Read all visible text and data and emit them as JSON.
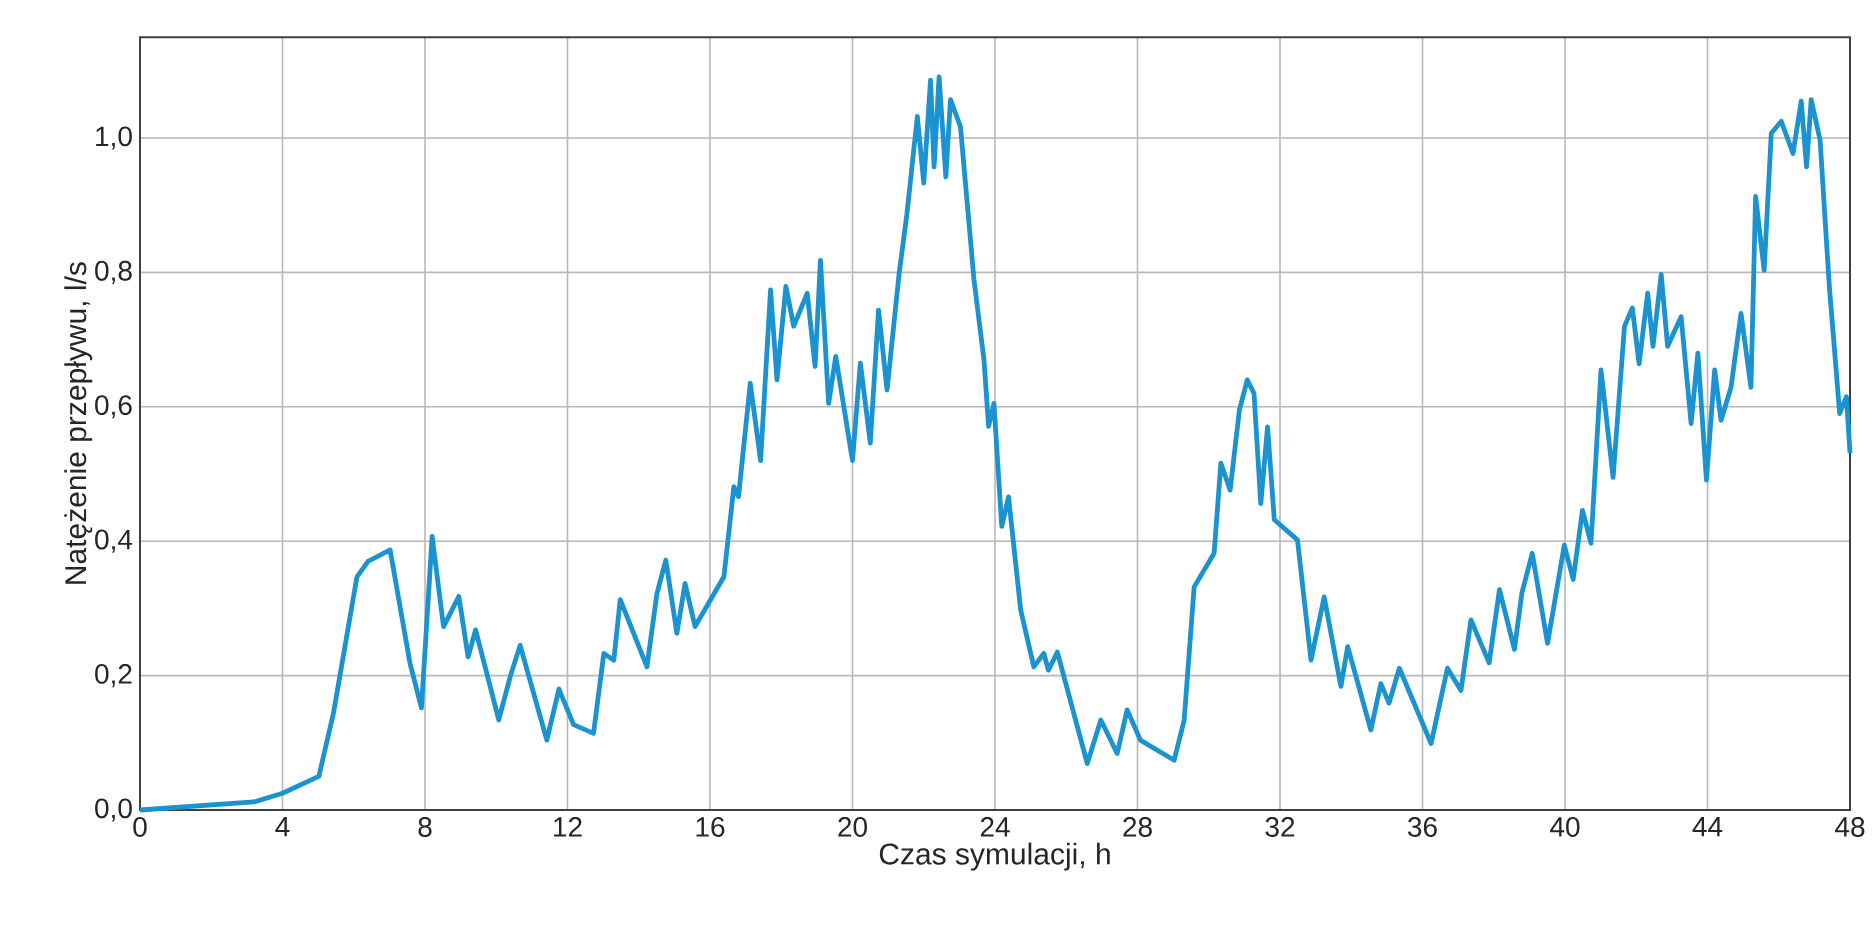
{
  "chart_data": {
    "type": "line",
    "xlabel": "Czas symulacji, h",
    "ylabel": "Natężenie przepływu, l/s",
    "xlim": [
      0,
      48
    ],
    "ylim": [
      0,
      1.15
    ],
    "xticks": [
      0,
      4,
      8,
      12,
      16,
      20,
      24,
      28,
      32,
      36,
      40,
      44,
      48
    ],
    "yticks": [
      {
        "value": 0,
        "label": "0,0"
      },
      {
        "value": 0.2,
        "label": "0,2"
      },
      {
        "value": 0.4,
        "label": "0,4"
      },
      {
        "value": 0.6,
        "label": "0,6"
      },
      {
        "value": 0.8,
        "label": "0,8"
      },
      {
        "value": 1.0,
        "label": "1,0"
      }
    ],
    "grid": true,
    "line_style": "solid",
    "series": [
      {
        "color": "#1a93d0",
        "x": [
          0,
          3.2,
          4,
          5.02,
          5.43,
          6.09,
          6.4,
          7.02,
          7.58,
          7.9,
          8.2,
          8.52,
          8.95,
          9.21,
          9.42,
          10.07,
          10.4,
          10.67,
          11.42,
          11.76,
          12.17,
          12.73,
          13.02,
          13.3,
          13.48,
          14.23,
          14.51,
          14.76,
          15.07,
          15.3,
          15.58,
          16.39,
          16.67,
          16.8,
          17.13,
          17.42,
          17.7,
          17.88,
          18.13,
          18.35,
          18.73,
          18.95,
          19.1,
          19.33,
          19.53,
          20.0,
          20.22,
          20.5,
          20.73,
          20.97,
          21.31,
          21.53,
          21.82,
          22.0,
          22.19,
          22.29,
          22.43,
          22.62,
          22.75,
          23.03,
          23.41,
          23.69,
          23.82,
          23.97,
          24.19,
          24.38,
          24.72,
          25.09,
          25.37,
          25.5,
          25.75,
          26.59,
          26.97,
          27.43,
          27.71,
          28.08,
          29.03,
          29.31,
          29.59,
          30.15,
          30.34,
          30.6,
          30.86,
          31.08,
          31.27,
          31.46,
          31.65,
          31.84,
          32.49,
          32.87,
          33.24,
          33.71,
          33.9,
          34.55,
          34.83,
          35.06,
          35.35,
          36.24,
          36.7,
          37.08,
          37.36,
          37.87,
          38.16,
          38.58,
          38.79,
          39.08,
          39.51,
          39.98,
          40.23,
          40.49,
          40.73,
          41.01,
          41.35,
          41.67,
          41.89,
          42.08,
          42.32,
          42.47,
          42.7,
          42.88,
          43.26,
          43.54,
          43.73,
          43.97,
          44.2,
          44.38,
          44.66,
          44.94,
          45.22,
          45.35,
          45.59,
          45.79,
          46.07,
          46.4,
          46.63,
          46.78,
          46.91,
          47.16,
          47.42,
          47.71,
          47.9,
          48
        ],
        "values": [
          0,
          0.012,
          0.025,
          0.05,
          0.144,
          0.347,
          0.37,
          0.387,
          0.218,
          0.152,
          0.407,
          0.273,
          0.318,
          0.228,
          0.268,
          0.134,
          0.2,
          0.245,
          0.104,
          0.18,
          0.127,
          0.114,
          0.233,
          0.223,
          0.313,
          0.213,
          0.322,
          0.372,
          0.263,
          0.337,
          0.273,
          0.347,
          0.481,
          0.466,
          0.635,
          0.52,
          0.774,
          0.64,
          0.779,
          0.72,
          0.769,
          0.66,
          0.818,
          0.605,
          0.675,
          0.52,
          0.665,
          0.546,
          0.744,
          0.625,
          0.799,
          0.888,
          1.032,
          0.933,
          1.086,
          0.957,
          1.091,
          0.942,
          1.057,
          1.017,
          0.789,
          0.67,
          0.571,
          0.605,
          0.422,
          0.466,
          0.298,
          0.213,
          0.233,
          0.208,
          0.235,
          0.069,
          0.134,
          0.084,
          0.149,
          0.104,
          0.074,
          0.134,
          0.332,
          0.382,
          0.516,
          0.476,
          0.595,
          0.64,
          0.62,
          0.456,
          0.57,
          0.432,
          0.402,
          0.223,
          0.317,
          0.184,
          0.243,
          0.119,
          0.188,
          0.159,
          0.211,
          0.099,
          0.211,
          0.178,
          0.283,
          0.219,
          0.328,
          0.239,
          0.323,
          0.382,
          0.248,
          0.394,
          0.343,
          0.446,
          0.397,
          0.655,
          0.495,
          0.72,
          0.747,
          0.664,
          0.769,
          0.69,
          0.797,
          0.69,
          0.734,
          0.575,
          0.68,
          0.491,
          0.655,
          0.58,
          0.629,
          0.739,
          0.629,
          0.913,
          0.803,
          1.007,
          1.025,
          0.977,
          1.055,
          0.957,
          1.057,
          0.997,
          0.779,
          0.59,
          0.615,
          0.531
        ]
      }
    ]
  }
}
